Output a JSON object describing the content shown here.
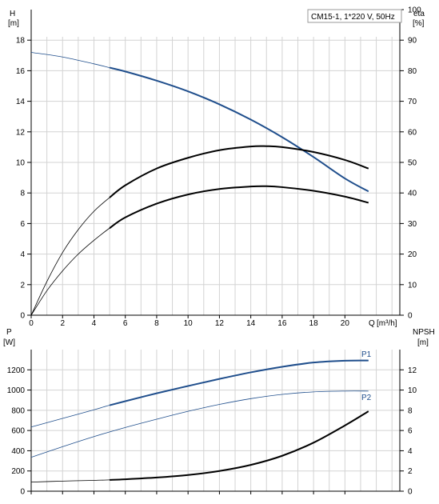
{
  "chart_data": [
    {
      "type": "line",
      "annotation": "CM15-1, 1*220 V, 50Hz",
      "x_axis": {
        "label_top": "Q",
        "label_unit": "[m³/h]",
        "ticks": [
          0,
          2,
          4,
          6,
          8,
          10,
          12,
          14,
          16,
          18,
          20
        ],
        "range": [
          0,
          23.5
        ]
      },
      "y_left": {
        "label": "H",
        "unit": "[m]",
        "ticks": [
          0,
          2,
          4,
          6,
          8,
          10,
          12,
          14,
          16,
          18
        ],
        "range": [
          0,
          20
        ]
      },
      "y_right": {
        "label": "eta",
        "unit": "[%]",
        "ticks": [
          0,
          10,
          20,
          30,
          40,
          50,
          60,
          70,
          80,
          90,
          100
        ],
        "range": [
          0,
          100
        ]
      },
      "grid": true,
      "series": [
        {
          "axis": "left",
          "color": "#1f4e8c",
          "x": [
            0,
            2,
            4,
            5,
            6,
            8,
            10,
            12,
            14,
            16,
            18,
            20,
            21.5
          ],
          "y": [
            17.2,
            16.9,
            16.45,
            16.2,
            15.95,
            15.35,
            14.65,
            13.8,
            12.8,
            11.65,
            10.35,
            8.95,
            8.1
          ]
        },
        {
          "axis": "right",
          "color": "#000000",
          "x": [
            0,
            1,
            2,
            3,
            4,
            5,
            6,
            8,
            10,
            12,
            14,
            15,
            16,
            18,
            20,
            21.5
          ],
          "y": [
            0,
            11,
            20.5,
            28,
            34,
            38.5,
            42.5,
            48,
            51.5,
            54,
            55.2,
            55.3,
            55,
            53.4,
            50.8,
            48
          ]
        },
        {
          "axis": "right",
          "color": "#000000",
          "x": [
            0,
            1,
            2,
            3,
            4,
            5,
            6,
            8,
            10,
            12,
            14,
            15,
            16,
            18,
            20,
            21.5
          ],
          "y": [
            0,
            8,
            14.5,
            20,
            24.5,
            28.5,
            32,
            36.5,
            39.5,
            41.3,
            42.1,
            42.2,
            41.9,
            40.7,
            38.8,
            36.8
          ]
        }
      ]
    },
    {
      "type": "line",
      "x_axis": {
        "ticks": [
          0,
          2,
          4,
          6,
          8,
          10,
          12,
          14,
          16,
          18,
          20
        ],
        "range": [
          0,
          23.5
        ]
      },
      "y_left": {
        "label": "P",
        "unit": "[W]",
        "ticks": [
          0,
          200,
          400,
          600,
          800,
          1000,
          1200
        ],
        "range": [
          0,
          1400
        ]
      },
      "y_right": {
        "label": "NPSH",
        "unit": "[m]",
        "ticks": [
          0,
          2,
          4,
          6,
          8,
          10,
          12
        ],
        "range": [
          0,
          14
        ]
      },
      "grid": true,
      "series": [
        {
          "name": "P1",
          "axis": "left",
          "color": "#1f4e8c",
          "x": [
            0,
            2,
            4,
            5,
            6,
            8,
            10,
            12,
            14,
            16,
            18,
            20,
            21.5
          ],
          "y": [
            635,
            720,
            805,
            850,
            890,
            968,
            1040,
            1110,
            1175,
            1230,
            1272,
            1290,
            1292
          ]
        },
        {
          "name": "P2",
          "axis": "left",
          "color": "#1f4e8c",
          "x": [
            0,
            2,
            4,
            6,
            8,
            10,
            12,
            14,
            16,
            18,
            20,
            21.5
          ],
          "y": [
            335,
            440,
            540,
            630,
            712,
            790,
            858,
            915,
            957,
            982,
            990,
            990
          ]
        },
        {
          "axis": "right",
          "color": "#000000",
          "x": [
            0,
            2,
            4,
            5,
            6,
            8,
            10,
            12,
            14,
            16,
            18,
            20,
            21.5
          ],
          "y": [
            0.9,
            1.0,
            1.07,
            1.12,
            1.18,
            1.35,
            1.6,
            2.0,
            2.6,
            3.5,
            4.8,
            6.5,
            7.9
          ]
        }
      ]
    }
  ]
}
